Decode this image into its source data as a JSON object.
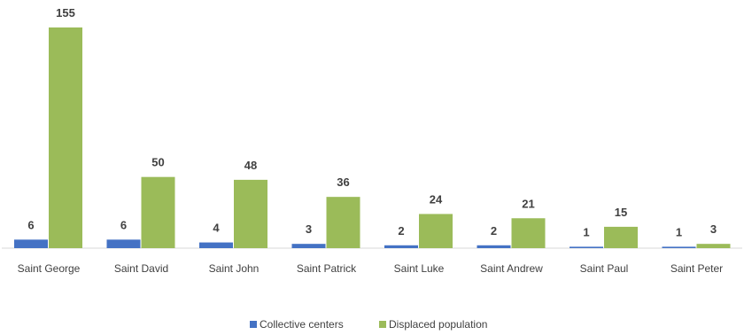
{
  "chart_data": {
    "type": "bar",
    "categories": [
      "Saint George",
      "Saint David",
      "Saint John",
      "Saint Patrick",
      "Saint Luke",
      "Saint Andrew",
      "Saint Paul",
      "Saint Peter"
    ],
    "series": [
      {
        "name": "Collective centers",
        "values": [
          6,
          6,
          4,
          3,
          2,
          2,
          1,
          1
        ],
        "color": "#4472c4"
      },
      {
        "name": "Displaced population",
        "values": [
          155,
          50,
          48,
          36,
          24,
          21,
          15,
          3
        ],
        "color": "#9bbb59"
      }
    ],
    "title": "",
    "xlabel": "",
    "ylabel": "",
    "ylim": [
      0,
      155
    ],
    "grid": false,
    "legend": "bottom",
    "data_labels": true
  }
}
